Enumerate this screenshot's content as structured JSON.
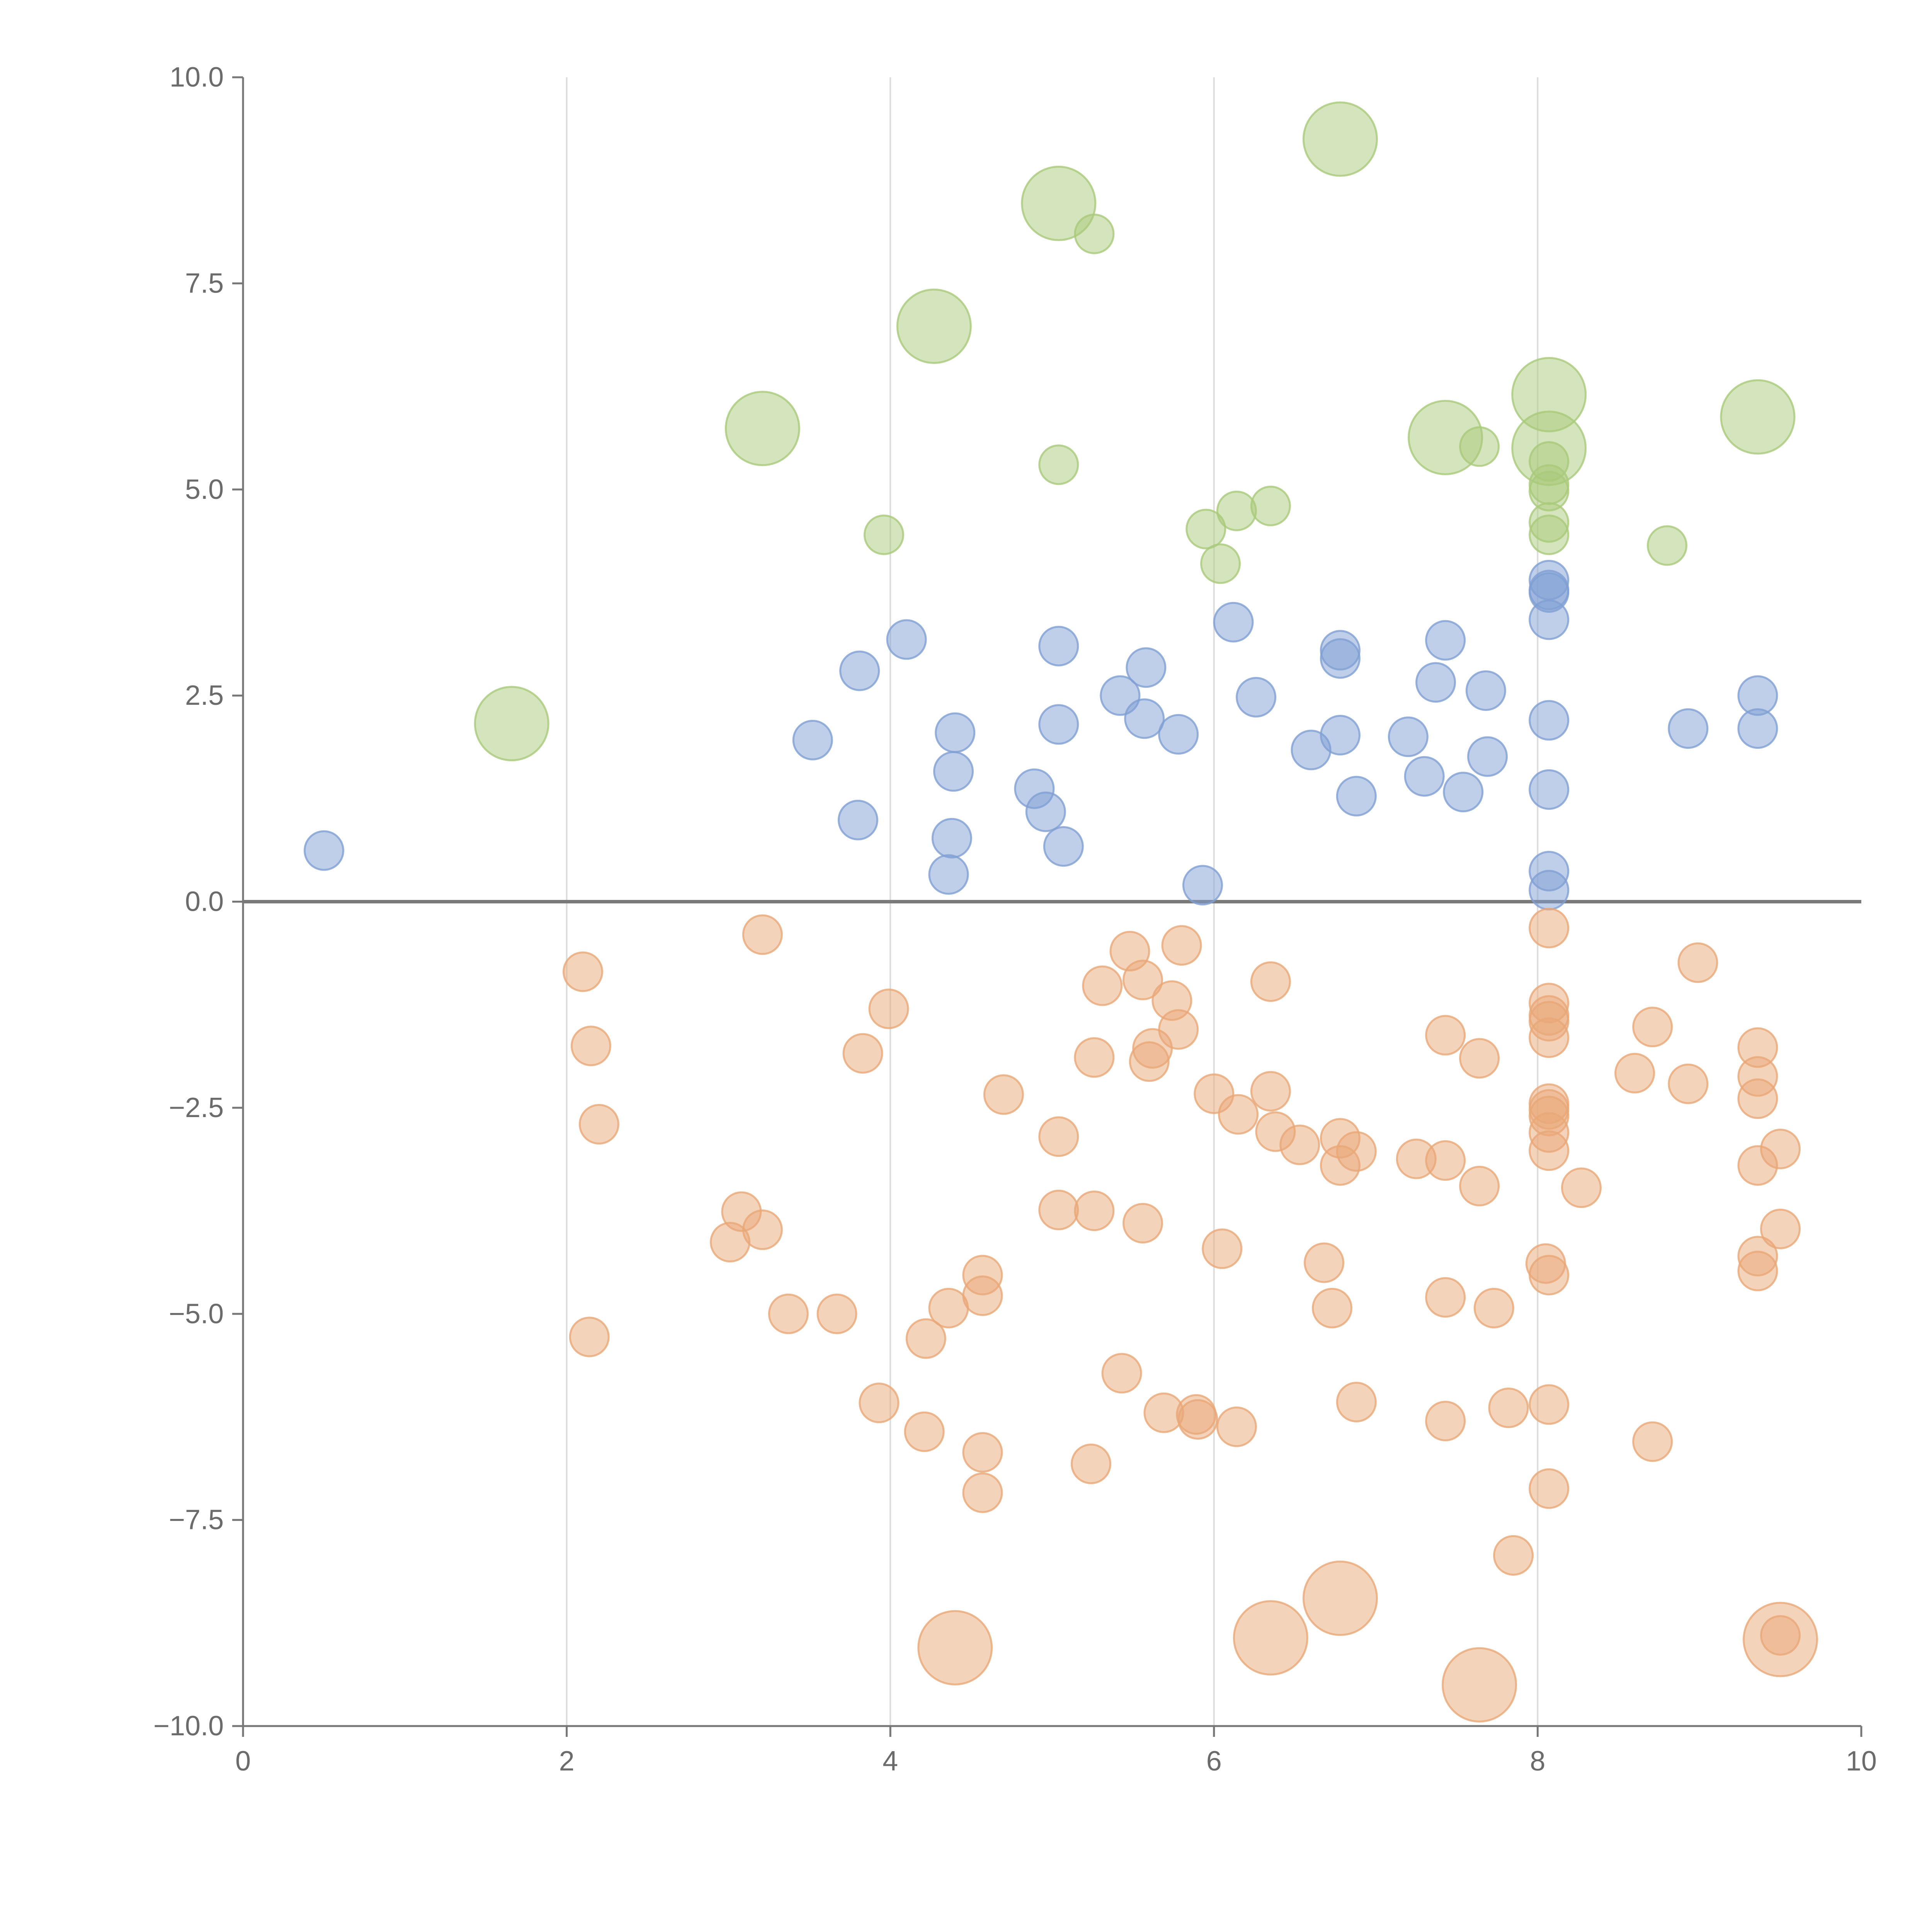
{
  "chart_data": {
    "type": "scatter",
    "title": "",
    "xlabel": "",
    "ylabel": "",
    "xlim": [
      0,
      10
    ],
    "ylim": [
      -10,
      10
    ],
    "xticks": [
      0,
      2,
      4,
      6,
      8,
      10
    ],
    "yticks": [
      -10,
      -7.5,
      -5,
      -2.5,
      0,
      2.5,
      5,
      7.5,
      10
    ],
    "xtick_labels": [
      "0",
      "2",
      "4",
      "6",
      "8",
      "10"
    ],
    "ytick_labels": [
      "−10.0",
      "−7.5",
      "−5.0",
      "−2.5",
      "0.0",
      "2.5",
      "5.0",
      "7.5",
      "10.0"
    ],
    "grid": "vertical",
    "zero_line": 0,
    "series": [
      {
        "name": "green",
        "color": "#a9c97a",
        "points": [
          {
            "x": 6.78,
            "y": 9.25,
            "size": 3
          },
          {
            "x": 5.04,
            "y": 8.47,
            "size": 3
          },
          {
            "x": 5.26,
            "y": 8.1,
            "size": 1
          },
          {
            "x": 4.27,
            "y": 6.98,
            "size": 3
          },
          {
            "x": 8.07,
            "y": 6.15,
            "size": 3
          },
          {
            "x": 9.36,
            "y": 5.88,
            "size": 3
          },
          {
            "x": 3.21,
            "y": 5.74,
            "size": 3
          },
          {
            "x": 7.43,
            "y": 5.63,
            "size": 3
          },
          {
            "x": 7.64,
            "y": 5.52,
            "size": 1
          },
          {
            "x": 8.07,
            "y": 5.5,
            "size": 3
          },
          {
            "x": 8.07,
            "y": 5.34,
            "size": 1
          },
          {
            "x": 5.04,
            "y": 5.3,
            "size": 1
          },
          {
            "x": 8.07,
            "y": 5.06,
            "size": 1
          },
          {
            "x": 8.07,
            "y": 4.98,
            "size": 1
          },
          {
            "x": 6.35,
            "y": 4.8,
            "size": 1
          },
          {
            "x": 6.14,
            "y": 4.74,
            "size": 1
          },
          {
            "x": 8.07,
            "y": 4.6,
            "size": 1
          },
          {
            "x": 5.95,
            "y": 4.52,
            "size": 1
          },
          {
            "x": 3.96,
            "y": 4.45,
            "size": 1
          },
          {
            "x": 8.07,
            "y": 4.45,
            "size": 1
          },
          {
            "x": 8.8,
            "y": 4.32,
            "size": 1
          },
          {
            "x": 6.04,
            "y": 4.1,
            "size": 1
          },
          {
            "x": 1.66,
            "y": 2.16,
            "size": 3
          }
        ]
      },
      {
        "name": "blue",
        "color": "#7f9fd3",
        "points": [
          {
            "x": 8.07,
            "y": 3.9,
            "size": 1
          },
          {
            "x": 8.07,
            "y": 3.75,
            "size": 1
          },
          {
            "x": 8.07,
            "y": 3.78,
            "size": 1
          },
          {
            "x": 8.07,
            "y": 3.42,
            "size": 1
          },
          {
            "x": 6.12,
            "y": 3.39,
            "size": 1
          },
          {
            "x": 4.1,
            "y": 3.18,
            "size": 1
          },
          {
            "x": 7.43,
            "y": 3.17,
            "size": 1
          },
          {
            "x": 5.04,
            "y": 3.1,
            "size": 1
          },
          {
            "x": 6.78,
            "y": 3.05,
            "size": 1
          },
          {
            "x": 6.78,
            "y": 2.95,
            "size": 1
          },
          {
            "x": 5.58,
            "y": 2.84,
            "size": 1
          },
          {
            "x": 3.81,
            "y": 2.8,
            "size": 1
          },
          {
            "x": 7.37,
            "y": 2.66,
            "size": 1
          },
          {
            "x": 7.68,
            "y": 2.56,
            "size": 1
          },
          {
            "x": 5.42,
            "y": 2.5,
            "size": 1
          },
          {
            "x": 9.36,
            "y": 2.5,
            "size": 1
          },
          {
            "x": 6.26,
            "y": 2.48,
            "size": 1
          },
          {
            "x": 5.57,
            "y": 2.22,
            "size": 1
          },
          {
            "x": 8.07,
            "y": 2.2,
            "size": 1
          },
          {
            "x": 5.04,
            "y": 2.15,
            "size": 1
          },
          {
            "x": 8.93,
            "y": 2.1,
            "size": 1
          },
          {
            "x": 9.36,
            "y": 2.1,
            "size": 1
          },
          {
            "x": 4.4,
            "y": 2.05,
            "size": 1
          },
          {
            "x": 5.78,
            "y": 2.03,
            "size": 1
          },
          {
            "x": 6.78,
            "y": 2.02,
            "size": 1
          },
          {
            "x": 7.2,
            "y": 2.0,
            "size": 1
          },
          {
            "x": 3.52,
            "y": 1.96,
            "size": 1
          },
          {
            "x": 6.6,
            "y": 1.84,
            "size": 1
          },
          {
            "x": 7.69,
            "y": 1.76,
            "size": 1
          },
          {
            "x": 4.39,
            "y": 1.58,
            "size": 1
          },
          {
            "x": 7.3,
            "y": 1.52,
            "size": 1
          },
          {
            "x": 4.89,
            "y": 1.37,
            "size": 1
          },
          {
            "x": 8.07,
            "y": 1.36,
            "size": 1
          },
          {
            "x": 7.54,
            "y": 1.33,
            "size": 1
          },
          {
            "x": 6.88,
            "y": 1.28,
            "size": 1
          },
          {
            "x": 4.96,
            "y": 1.09,
            "size": 1
          },
          {
            "x": 3.8,
            "y": 0.99,
            "size": 1
          },
          {
            "x": 4.38,
            "y": 0.77,
            "size": 1
          },
          {
            "x": 5.07,
            "y": 0.67,
            "size": 1
          },
          {
            "x": 0.5,
            "y": 0.62,
            "size": 1
          },
          {
            "x": 8.07,
            "y": 0.37,
            "size": 1
          },
          {
            "x": 4.36,
            "y": 0.33,
            "size": 1
          },
          {
            "x": 5.93,
            "y": 0.2,
            "size": 1
          },
          {
            "x": 8.07,
            "y": 0.14,
            "size": 1
          }
        ]
      },
      {
        "name": "orange",
        "color": "#e9a877",
        "points": [
          {
            "x": 8.07,
            "y": -0.32,
            "size": 1
          },
          {
            "x": 3.21,
            "y": -0.4,
            "size": 1
          },
          {
            "x": 5.8,
            "y": -0.53,
            "size": 1
          },
          {
            "x": 5.48,
            "y": -0.6,
            "size": 1
          },
          {
            "x": 8.99,
            "y": -0.74,
            "size": 1
          },
          {
            "x": 2.1,
            "y": -0.85,
            "size": 1
          },
          {
            "x": 5.56,
            "y": -0.95,
            "size": 1
          },
          {
            "x": 6.35,
            "y": -0.97,
            "size": 1
          },
          {
            "x": 5.31,
            "y": -1.02,
            "size": 1
          },
          {
            "x": 5.74,
            "y": -1.2,
            "size": 1
          },
          {
            "x": 8.07,
            "y": -1.23,
            "size": 1
          },
          {
            "x": 3.99,
            "y": -1.3,
            "size": 1
          },
          {
            "x": 8.07,
            "y": -1.38,
            "size": 1
          },
          {
            "x": 8.07,
            "y": -1.45,
            "size": 1
          },
          {
            "x": 8.71,
            "y": -1.52,
            "size": 1
          },
          {
            "x": 5.78,
            "y": -1.55,
            "size": 1
          },
          {
            "x": 7.43,
            "y": -1.62,
            "size": 1
          },
          {
            "x": 8.07,
            "y": -1.65,
            "size": 1
          },
          {
            "x": 2.15,
            "y": -1.75,
            "size": 1
          },
          {
            "x": 9.36,
            "y": -1.77,
            "size": 1
          },
          {
            "x": 5.62,
            "y": -1.78,
            "size": 1
          },
          {
            "x": 3.83,
            "y": -1.84,
            "size": 1
          },
          {
            "x": 5.26,
            "y": -1.89,
            "size": 1
          },
          {
            "x": 7.64,
            "y": -1.9,
            "size": 1
          },
          {
            "x": 5.6,
            "y": -1.94,
            "size": 1
          },
          {
            "x": 8.6,
            "y": -2.08,
            "size": 1
          },
          {
            "x": 9.36,
            "y": -2.12,
            "size": 1
          },
          {
            "x": 8.93,
            "y": -2.21,
            "size": 1
          },
          {
            "x": 6.35,
            "y": -2.3,
            "size": 1
          },
          {
            "x": 6.0,
            "y": -2.33,
            "size": 1
          },
          {
            "x": 4.7,
            "y": -2.34,
            "size": 1
          },
          {
            "x": 9.36,
            "y": -2.39,
            "size": 1
          },
          {
            "x": 8.07,
            "y": -2.45,
            "size": 1
          },
          {
            "x": 8.07,
            "y": -2.52,
            "size": 1
          },
          {
            "x": 6.15,
            "y": -2.58,
            "size": 1
          },
          {
            "x": 8.07,
            "y": -2.6,
            "size": 1
          },
          {
            "x": 2.2,
            "y": -2.7,
            "size": 1
          },
          {
            "x": 6.38,
            "y": -2.79,
            "size": 1
          },
          {
            "x": 8.07,
            "y": -2.8,
            "size": 1
          },
          {
            "x": 5.04,
            "y": -2.85,
            "size": 1
          },
          {
            "x": 6.78,
            "y": -2.87,
            "size": 1
          },
          {
            "x": 6.53,
            "y": -2.95,
            "size": 1
          },
          {
            "x": 9.5,
            "y": -3.0,
            "size": 1
          },
          {
            "x": 8.07,
            "y": -3.02,
            "size": 1
          },
          {
            "x": 6.88,
            "y": -3.03,
            "size": 1
          },
          {
            "x": 7.25,
            "y": -3.12,
            "size": 1
          },
          {
            "x": 7.43,
            "y": -3.14,
            "size": 1
          },
          {
            "x": 6.78,
            "y": -3.2,
            "size": 1
          },
          {
            "x": 9.36,
            "y": -3.2,
            "size": 1
          },
          {
            "x": 7.64,
            "y": -3.45,
            "size": 1
          },
          {
            "x": 8.27,
            "y": -3.47,
            "size": 1
          },
          {
            "x": 3.08,
            "y": -3.76,
            "size": 1
          },
          {
            "x": 5.04,
            "y": -3.74,
            "size": 1
          },
          {
            "x": 5.26,
            "y": -3.75,
            "size": 1
          },
          {
            "x": 5.56,
            "y": -3.9,
            "size": 1
          },
          {
            "x": 3.21,
            "y": -3.98,
            "size": 1
          },
          {
            "x": 9.5,
            "y": -3.97,
            "size": 1
          },
          {
            "x": 3.01,
            "y": -4.13,
            "size": 1
          },
          {
            "x": 6.05,
            "y": -4.21,
            "size": 1
          },
          {
            "x": 9.36,
            "y": -4.3,
            "size": 1
          },
          {
            "x": 8.05,
            "y": -4.39,
            "size": 1
          },
          {
            "x": 6.68,
            "y": -4.38,
            "size": 1
          },
          {
            "x": 9.36,
            "y": -4.48,
            "size": 1
          },
          {
            "x": 8.07,
            "y": -4.53,
            "size": 1
          },
          {
            "x": 4.57,
            "y": -4.53,
            "size": 1
          },
          {
            "x": 4.57,
            "y": -4.78,
            "size": 1
          },
          {
            "x": 7.43,
            "y": -4.8,
            "size": 1
          },
          {
            "x": 4.36,
            "y": -4.93,
            "size": 1
          },
          {
            "x": 6.73,
            "y": -4.93,
            "size": 1
          },
          {
            "x": 7.73,
            "y": -4.93,
            "size": 1
          },
          {
            "x": 3.37,
            "y": -5.0,
            "size": 1
          },
          {
            "x": 3.67,
            "y": -5.0,
            "size": 1
          },
          {
            "x": 4.22,
            "y": -5.3,
            "size": 1
          },
          {
            "x": 2.14,
            "y": -5.28,
            "size": 1
          },
          {
            "x": 5.43,
            "y": -5.72,
            "size": 1
          },
          {
            "x": 3.93,
            "y": -6.08,
            "size": 1
          },
          {
            "x": 6.88,
            "y": -6.07,
            "size": 1
          },
          {
            "x": 8.07,
            "y": -6.1,
            "size": 1
          },
          {
            "x": 7.82,
            "y": -6.14,
            "size": 1
          },
          {
            "x": 5.89,
            "y": -6.22,
            "size": 1
          },
          {
            "x": 5.69,
            "y": -6.2,
            "size": 1
          },
          {
            "x": 5.9,
            "y": -6.28,
            "size": 1
          },
          {
            "x": 7.43,
            "y": -6.3,
            "size": 1
          },
          {
            "x": 6.14,
            "y": -6.37,
            "size": 1
          },
          {
            "x": 4.21,
            "y": -6.43,
            "size": 1
          },
          {
            "x": 8.71,
            "y": -6.55,
            "size": 1
          },
          {
            "x": 4.57,
            "y": -6.68,
            "size": 1
          },
          {
            "x": 5.24,
            "y": -6.82,
            "size": 1
          },
          {
            "x": 8.07,
            "y": -7.12,
            "size": 1
          },
          {
            "x": 4.57,
            "y": -7.17,
            "size": 1
          },
          {
            "x": 7.85,
            "y": -7.93,
            "size": 1
          },
          {
            "x": 6.78,
            "y": -8.45,
            "size": 3
          },
          {
            "x": 9.5,
            "y": -8.9,
            "size": 1
          },
          {
            "x": 6.35,
            "y": -8.93,
            "size": 3
          },
          {
            "x": 9.5,
            "y": -8.95,
            "size": 3
          },
          {
            "x": 4.4,
            "y": -9.05,
            "size": 3
          },
          {
            "x": 7.64,
            "y": -9.5,
            "size": 3
          }
        ]
      }
    ]
  }
}
